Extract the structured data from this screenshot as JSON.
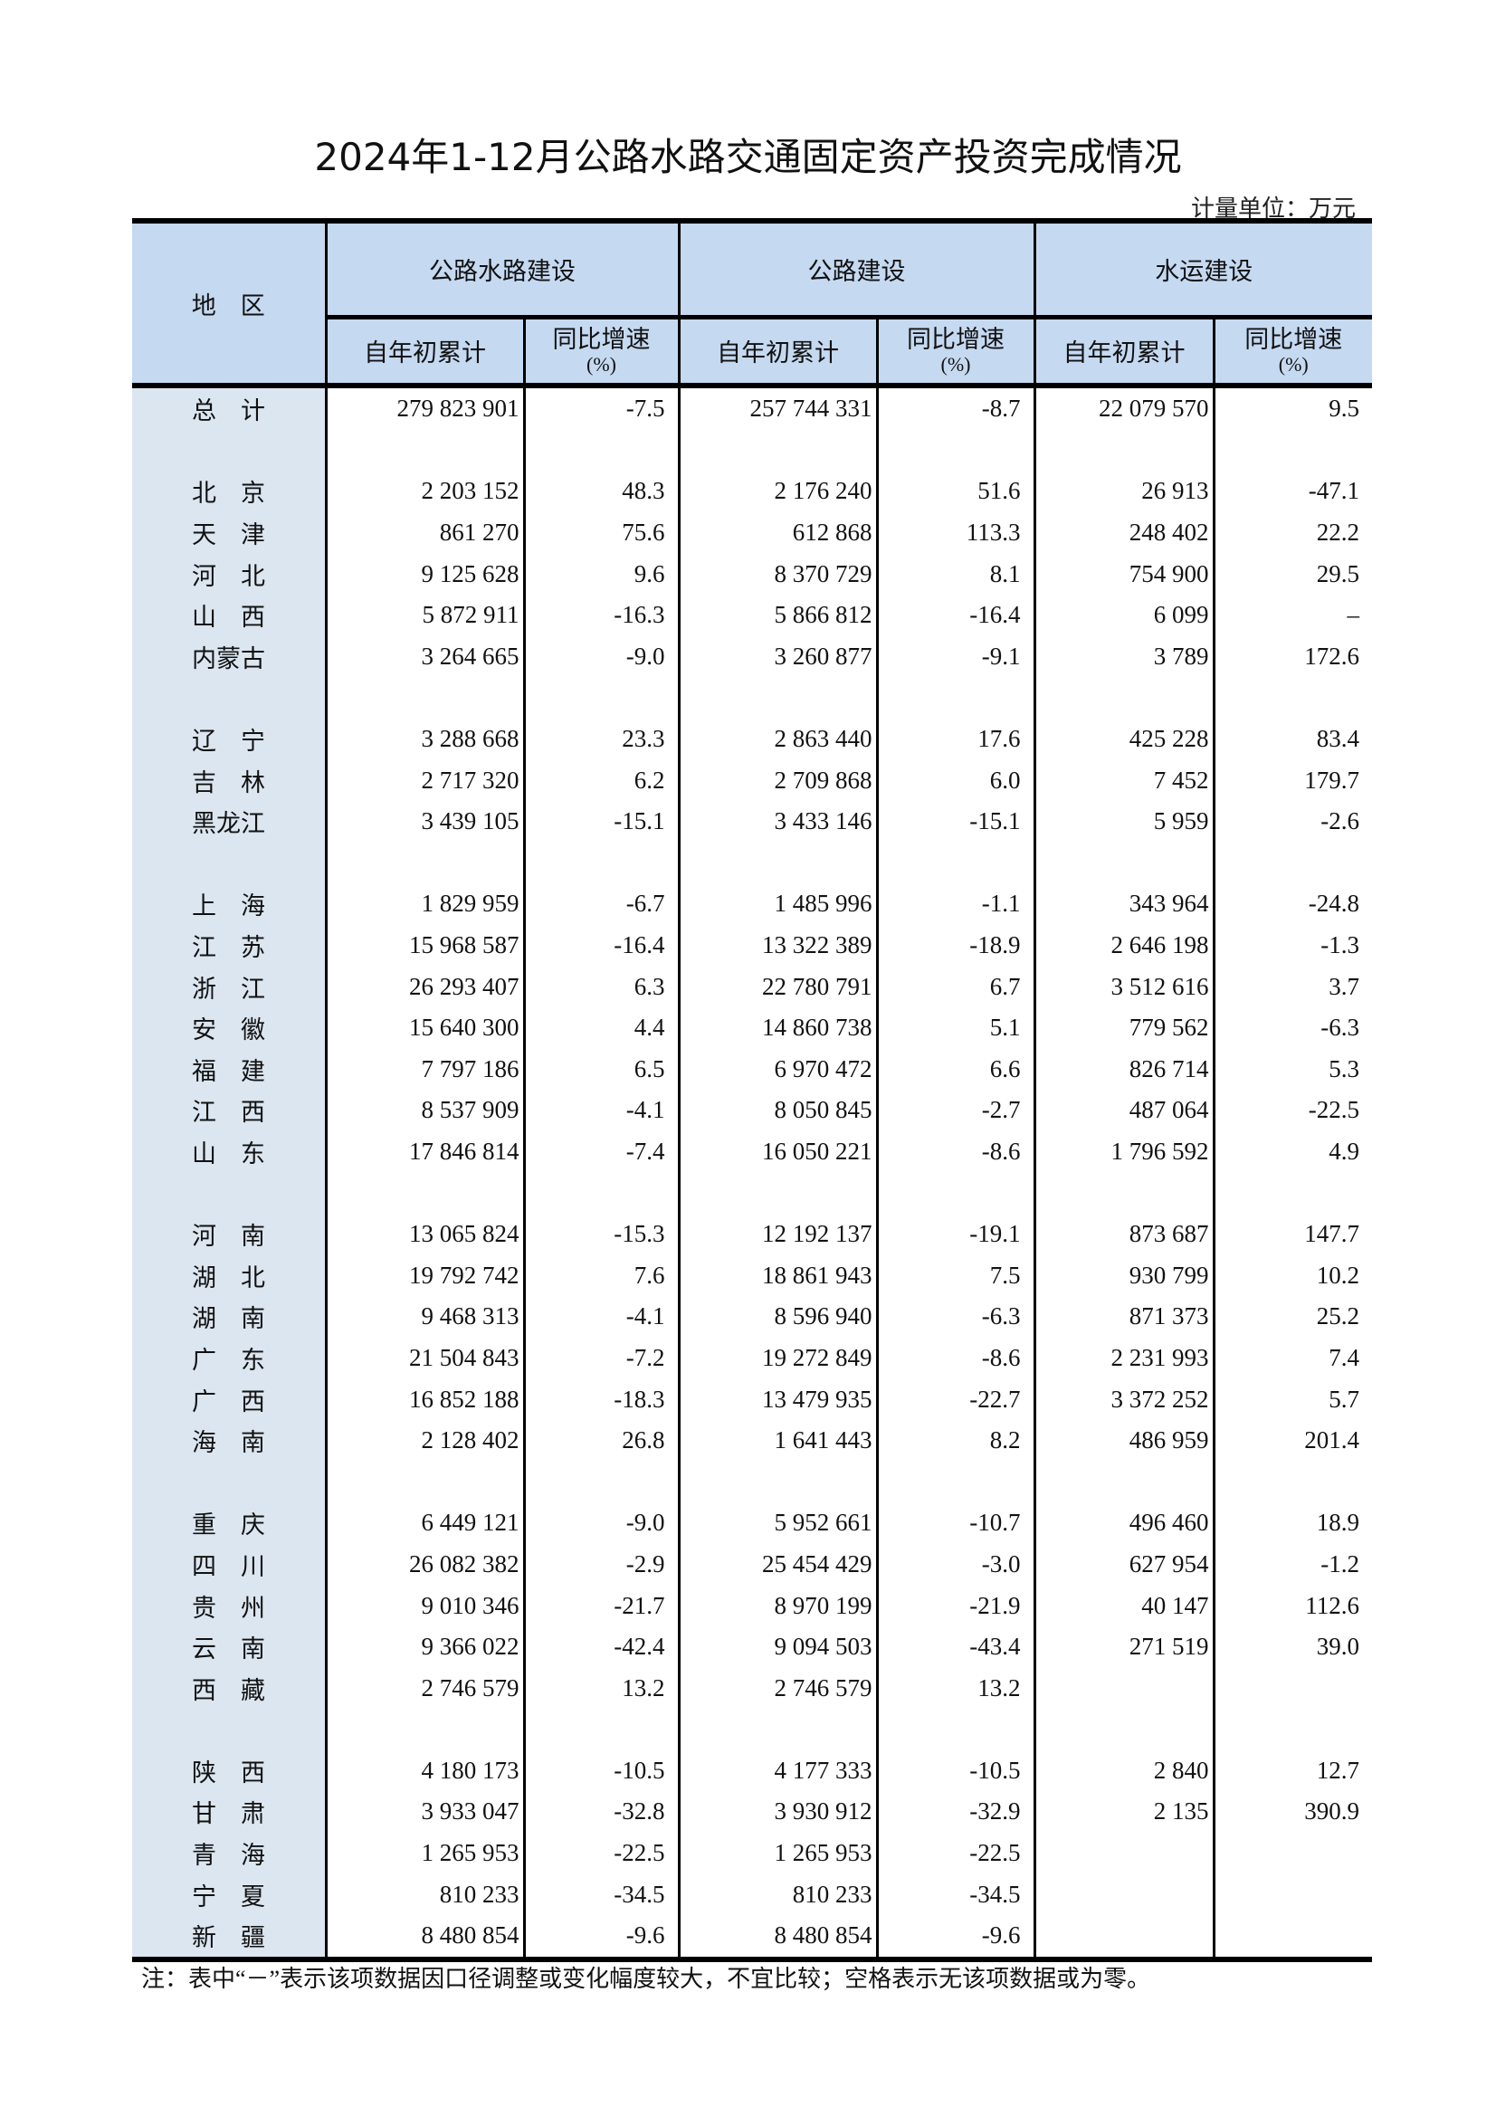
{
  "title": "2024年1-12月公路水路交通固定资产投资完成情况",
  "unit": "计量单位：万元",
  "header": {
    "region": "地　区",
    "groups": [
      "公路水路建设",
      "公路建设",
      "水运建设"
    ],
    "cumulative": "自年初累计",
    "growth": "同比增速",
    "growth_unit": "(%)"
  },
  "rows": [
    {
      "region": "总　计",
      "v": [
        "279 823 901",
        "-7.5",
        "257 744 331",
        "-8.7",
        "22 079 570",
        "9.5"
      ],
      "total": true
    },
    null,
    {
      "region": "北　京",
      "v": [
        "2 203 152",
        "48.3",
        "2 176 240",
        "51.6",
        "26 913",
        "-47.1"
      ]
    },
    {
      "region": "天　津",
      "v": [
        "861 270",
        "75.6",
        "612 868",
        "113.3",
        "248 402",
        "22.2"
      ]
    },
    {
      "region": "河　北",
      "v": [
        "9 125 628",
        "9.6",
        "8 370 729",
        "8.1",
        "754 900",
        "29.5"
      ]
    },
    {
      "region": "山　西",
      "v": [
        "5 872 911",
        "-16.3",
        "5 866 812",
        "-16.4",
        "6 099",
        "–"
      ]
    },
    {
      "region": "内蒙古",
      "v": [
        "3 264 665",
        "-9.0",
        "3 260 877",
        "-9.1",
        "3 789",
        "172.6"
      ]
    },
    null,
    {
      "region": "辽　宁",
      "v": [
        "3 288 668",
        "23.3",
        "2 863 440",
        "17.6",
        "425 228",
        "83.4"
      ]
    },
    {
      "region": "吉　林",
      "v": [
        "2 717 320",
        "6.2",
        "2 709 868",
        "6.0",
        "7 452",
        "179.7"
      ]
    },
    {
      "region": "黑龙江",
      "v": [
        "3 439 105",
        "-15.1",
        "3 433 146",
        "-15.1",
        "5 959",
        "-2.6"
      ]
    },
    null,
    {
      "region": "上　海",
      "v": [
        "1 829 959",
        "-6.7",
        "1 485 996",
        "-1.1",
        "343 964",
        "-24.8"
      ]
    },
    {
      "region": "江　苏",
      "v": [
        "15 968 587",
        "-16.4",
        "13 322 389",
        "-18.9",
        "2 646 198",
        "-1.3"
      ]
    },
    {
      "region": "浙　江",
      "v": [
        "26 293 407",
        "6.3",
        "22 780 791",
        "6.7",
        "3 512 616",
        "3.7"
      ]
    },
    {
      "region": "安　徽",
      "v": [
        "15 640 300",
        "4.4",
        "14 860 738",
        "5.1",
        "779 562",
        "-6.3"
      ]
    },
    {
      "region": "福　建",
      "v": [
        "7 797 186",
        "6.5",
        "6 970 472",
        "6.6",
        "826 714",
        "5.3"
      ]
    },
    {
      "region": "江　西",
      "v": [
        "8 537 909",
        "-4.1",
        "8 050 845",
        "-2.7",
        "487 064",
        "-22.5"
      ]
    },
    {
      "region": "山　东",
      "v": [
        "17 846 814",
        "-7.4",
        "16 050 221",
        "-8.6",
        "1 796 592",
        "4.9"
      ]
    },
    null,
    {
      "region": "河　南",
      "v": [
        "13 065 824",
        "-15.3",
        "12 192 137",
        "-19.1",
        "873 687",
        "147.7"
      ]
    },
    {
      "region": "湖　北",
      "v": [
        "19 792 742",
        "7.6",
        "18 861 943",
        "7.5",
        "930 799",
        "10.2"
      ]
    },
    {
      "region": "湖　南",
      "v": [
        "9 468 313",
        "-4.1",
        "8 596 940",
        "-6.3",
        "871 373",
        "25.2"
      ]
    },
    {
      "region": "广　东",
      "v": [
        "21 504 843",
        "-7.2",
        "19 272 849",
        "-8.6",
        "2 231 993",
        "7.4"
      ]
    },
    {
      "region": "广　西",
      "v": [
        "16 852 188",
        "-18.3",
        "13 479 935",
        "-22.7",
        "3 372 252",
        "5.7"
      ]
    },
    {
      "region": "海　南",
      "v": [
        "2 128 402",
        "26.8",
        "1 641 443",
        "8.2",
        "486 959",
        "201.4"
      ]
    },
    null,
    {
      "region": "重　庆",
      "v": [
        "6 449 121",
        "-9.0",
        "5 952 661",
        "-10.7",
        "496 460",
        "18.9"
      ]
    },
    {
      "region": "四　川",
      "v": [
        "26 082 382",
        "-2.9",
        "25 454 429",
        "-3.0",
        "627 954",
        "-1.2"
      ]
    },
    {
      "region": "贵　州",
      "v": [
        "9 010 346",
        "-21.7",
        "8 970 199",
        "-21.9",
        "40 147",
        "112.6"
      ]
    },
    {
      "region": "云　南",
      "v": [
        "9 366 022",
        "-42.4",
        "9 094 503",
        "-43.4",
        "271 519",
        "39.0"
      ]
    },
    {
      "region": "西　藏",
      "v": [
        "2 746 579",
        "13.2",
        "2 746 579",
        "13.2",
        "",
        ""
      ]
    },
    null,
    {
      "region": "陕　西",
      "v": [
        "4 180 173",
        "-10.5",
        "4 177 333",
        "-10.5",
        "2 840",
        "12.7"
      ]
    },
    {
      "region": "甘　肃",
      "v": [
        "3 933 047",
        "-32.8",
        "3 930 912",
        "-32.9",
        "2 135",
        "390.9"
      ]
    },
    {
      "region": "青　海",
      "v": [
        "1 265 953",
        "-22.5",
        "1 265 953",
        "-22.5",
        "",
        ""
      ]
    },
    {
      "region": "宁　夏",
      "v": [
        "810 233",
        "-34.5",
        "810 233",
        "-34.5",
        "",
        ""
      ]
    },
    {
      "region": "新　疆",
      "v": [
        "8 480 854",
        "-9.6",
        "8 480 854",
        "-9.6",
        "",
        ""
      ]
    }
  ],
  "note": "注：表中“－”表示该项数据因口径调整或变化幅度较大，不宜比较；空格表示无该项数据或为零。"
}
